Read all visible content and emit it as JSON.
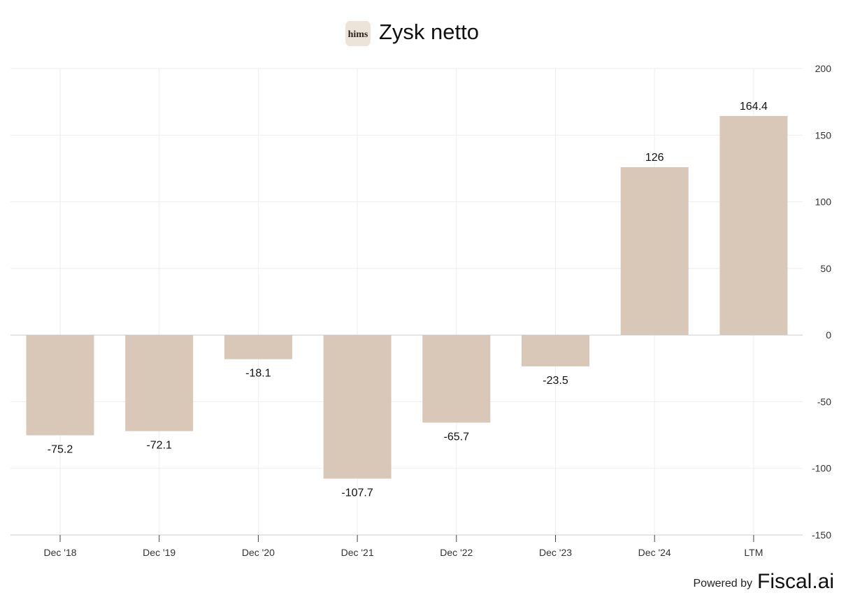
{
  "header": {
    "title": "Zysk netto",
    "logo_text": "hims",
    "logo_bg": "#ece3d9"
  },
  "footer": {
    "powered_by": "Powered by",
    "brand": "Fiscal.ai"
  },
  "colors": {
    "bar": "#d9c8b8",
    "grid": "#eeeeee",
    "zero_line": "#cccccc",
    "axis": "#cccccc"
  },
  "chart_data": {
    "type": "bar",
    "title": "Zysk netto",
    "categories": [
      "Dec '18",
      "Dec '19",
      "Dec '20",
      "Dec '21",
      "Dec '22",
      "Dec '23",
      "Dec '24",
      "LTM"
    ],
    "values": [
      -75.2,
      -72.1,
      -18.1,
      -107.7,
      -65.7,
      -23.5,
      126,
      164.4
    ],
    "value_labels": [
      "-75.2",
      "-72.1",
      "-18.1",
      "-107.7",
      "-65.7",
      "-23.5",
      "126",
      "164.4"
    ],
    "y_ticks": [
      200,
      150,
      100,
      50,
      0,
      -50,
      -100,
      -150
    ],
    "ylim": [
      -150,
      200
    ],
    "y_axis_side": "right",
    "grid": true,
    "legend": "none"
  }
}
